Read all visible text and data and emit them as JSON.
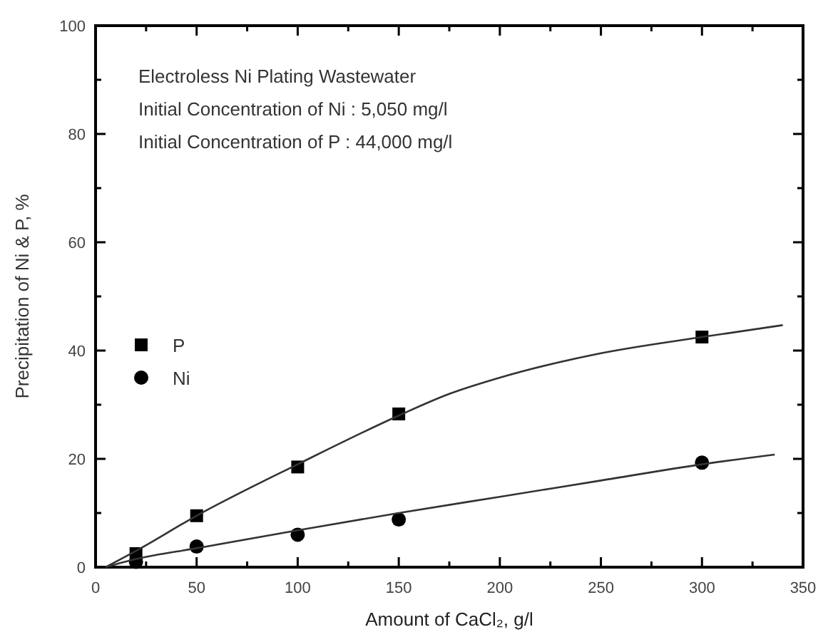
{
  "chart_data": {
    "type": "scatter",
    "xlabel": "Amount of CaCl₂, g/l",
    "ylabel": "Precipitation of Ni & P, %",
    "annotations": [
      "Electroless Ni Plating Wastewater",
      "Initial Concentration of Ni : 5,050 mg/l",
      "Initial Concentration of P : 44,000 mg/l"
    ],
    "xlim": [
      0,
      350
    ],
    "ylim": [
      0,
      100
    ],
    "xticks": [
      0,
      {
        "value": 25,
        "label": null
      },
      50,
      {
        "value": 75,
        "label": null
      },
      100,
      {
        "value": 125,
        "label": null
      },
      150,
      {
        "value": 175,
        "label": null
      },
      200,
      {
        "value": 225,
        "label": null
      },
      250,
      {
        "value": 275,
        "label": null
      },
      300,
      {
        "value": 325,
        "label": null
      },
      350
    ],
    "yticks": [
      0,
      {
        "value": 10,
        "label": null
      },
      20,
      {
        "value": 30,
        "label": null
      },
      40,
      {
        "value": 50,
        "label": null
      },
      60,
      {
        "value": 70,
        "label": null
      },
      80,
      {
        "value": 90,
        "label": null
      },
      100
    ],
    "grid": false,
    "legend": "left",
    "series": [
      {
        "name": "P",
        "marker": "square",
        "color": "#000000",
        "x": [
          20,
          50,
          100,
          150,
          300
        ],
        "values": [
          2.5,
          9.5,
          18.5,
          28.3,
          42.5
        ]
      },
      {
        "name": "Ni",
        "marker": "circle",
        "color": "#000000",
        "x": [
          20,
          50,
          100,
          150,
          300
        ],
        "values": [
          1,
          3.8,
          6,
          8.8,
          19.3
        ]
      },
      {
        "type": "line",
        "marker": "none",
        "line_style": "solid",
        "color": "#333333",
        "x": [
          5,
          20,
          50,
          100,
          150,
          175,
          200,
          250,
          300,
          340
        ],
        "values": [
          0,
          3,
          9.5,
          19,
          28,
          32,
          35,
          39.5,
          42.5,
          44.7
        ]
      },
      {
        "type": "line",
        "marker": "none",
        "line_style": "solid",
        "color": "#333333",
        "x": [
          5,
          20,
          50,
          100,
          150,
          200,
          250,
          300,
          336
        ],
        "values": [
          0,
          1.5,
          3.5,
          6.8,
          10,
          13,
          16,
          19,
          20.8
        ]
      }
    ]
  }
}
